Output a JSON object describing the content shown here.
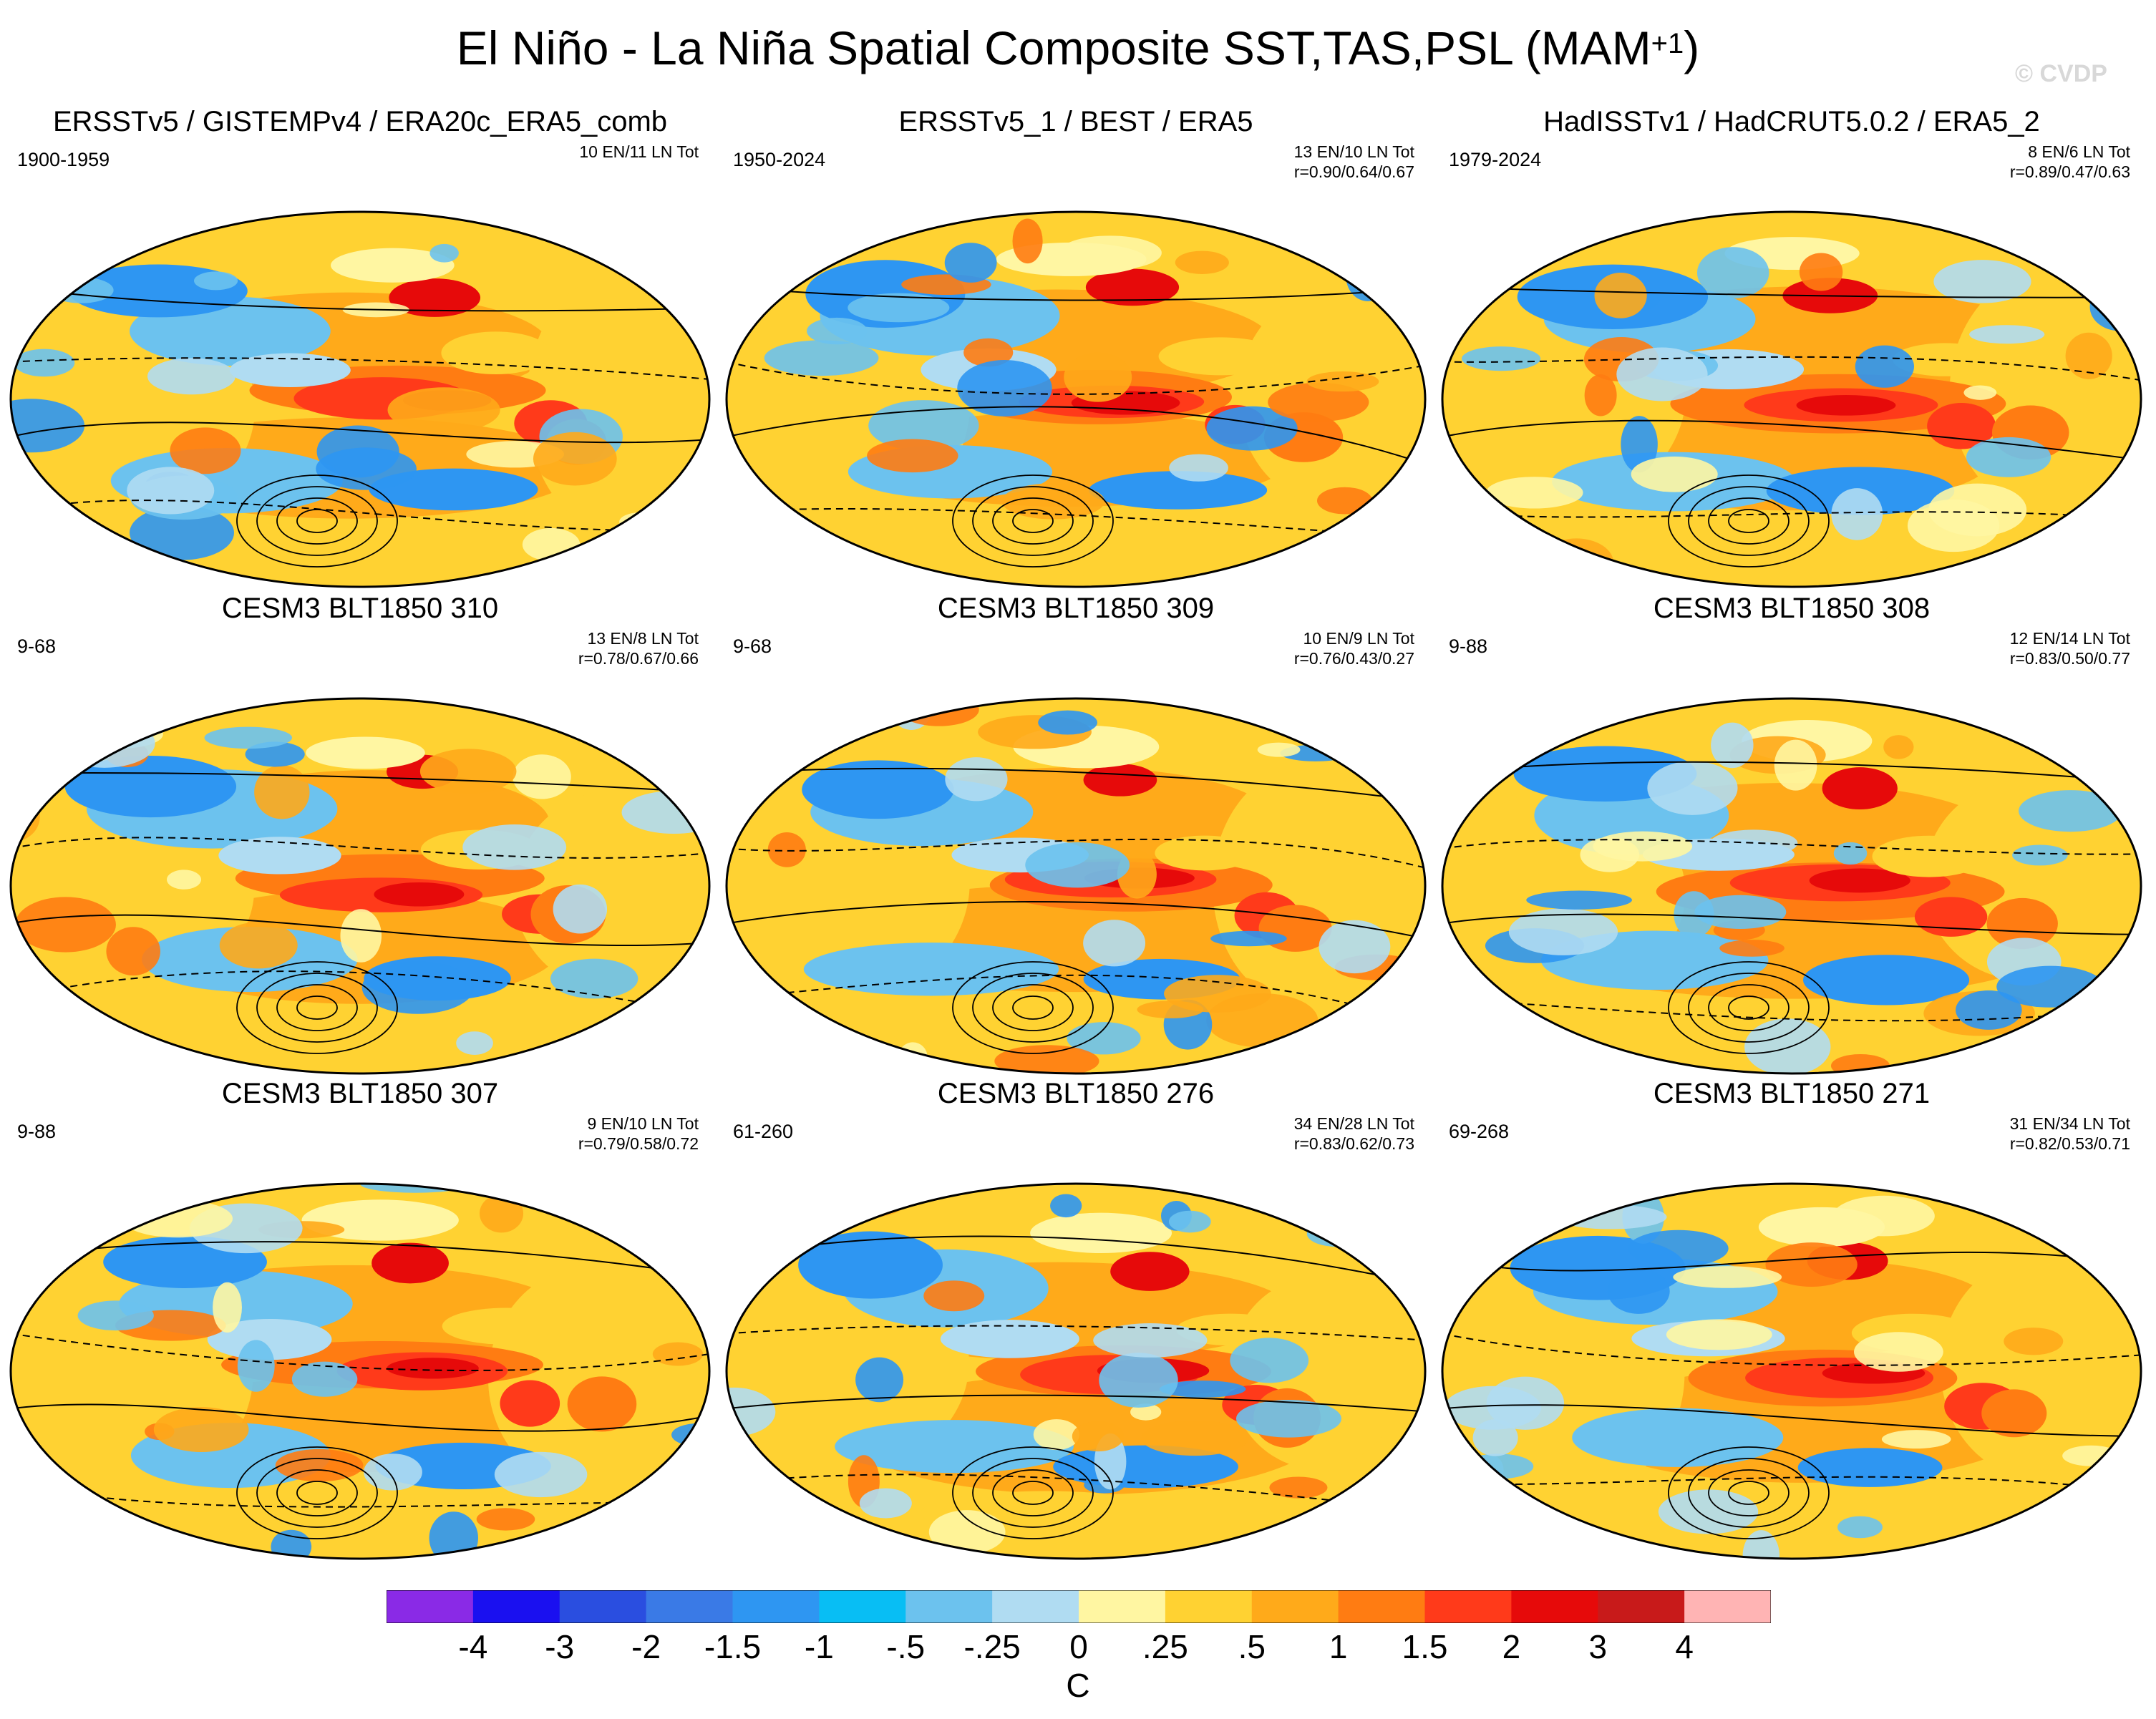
{
  "title": "El Niño - La Niña Spatial Composite SST,TAS,PSL (MAM",
  "title_superscript": "+1",
  "title_close": ")",
  "watermark": "© CVDP",
  "panels": [
    {
      "title": "ERSSTv5 / GISTEMPv4 / ERA20c_ERA5_comb",
      "period": "1900-1959",
      "events": "10 EN/11 LN Tot",
      "corr": ""
    },
    {
      "title": "ERSSTv5_1 / BEST / ERA5",
      "period": "1950-2024",
      "events": "13 EN/10 LN Tot",
      "corr": "r=0.90/0.64/0.67"
    },
    {
      "title": "HadISSTv1 / HadCRUT5.0.2 / ERA5_2",
      "period": "1979-2024",
      "events": "8 EN/6 LN Tot",
      "corr": "r=0.89/0.47/0.63"
    },
    {
      "title": "CESM3 BLT1850 310",
      "period": "9-68",
      "events": "13 EN/8 LN Tot",
      "corr": "r=0.78/0.67/0.66"
    },
    {
      "title": "CESM3 BLT1850 309",
      "period": "9-68",
      "events": "10 EN/9 LN Tot",
      "corr": "r=0.76/0.43/0.27"
    },
    {
      "title": "CESM3 BLT1850 308",
      "period": "9-88",
      "events": "12 EN/14 LN Tot",
      "corr": "r=0.83/0.50/0.77"
    },
    {
      "title": "CESM3 BLT1850 307",
      "period": "9-88",
      "events": "9 EN/10 LN Tot",
      "corr": "r=0.79/0.58/0.72"
    },
    {
      "title": "CESM3 BLT1850 276",
      "period": "61-260",
      "events": "34 EN/28 LN Tot",
      "corr": "r=0.83/0.62/0.73"
    },
    {
      "title": "CESM3 BLT1850 271",
      "period": "69-268",
      "events": "31 EN/34 LN Tot",
      "corr": "r=0.82/0.53/0.71"
    }
  ],
  "colorbar": {
    "labels": [
      "-4",
      "-3",
      "-2",
      "-1.5",
      "-1",
      "-.5",
      "-.25",
      "0",
      ".25",
      ".5",
      "1",
      "1.5",
      "2",
      "3",
      "4"
    ],
    "colors": [
      "#8a2ae6",
      "#1a10f0",
      "#2a4ee0",
      "#3a7ae6",
      "#2e96f2",
      "#08bef4",
      "#6cc2ee",
      "#b0dcf2",
      "#fff6a2",
      "#ffd232",
      "#ffaa1a",
      "#ff7c12",
      "#ff3a1a",
      "#e60a0a",
      "#c81a1a",
      "#ffb4b4"
    ],
    "units": "C"
  }
}
